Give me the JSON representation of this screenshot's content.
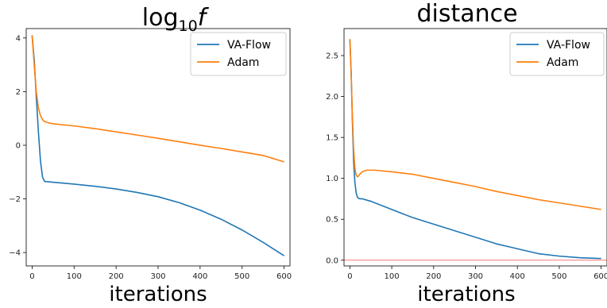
{
  "chart_data": [
    {
      "type": "line",
      "title": "log",
      "title_sub": "10",
      "title_suffix": "f",
      "xlabel": "iterations",
      "ylabel": "",
      "xlim": [
        -14,
        614
      ],
      "ylim": [
        -4.5,
        4.35
      ],
      "xticks": [
        0,
        100,
        200,
        300,
        400,
        500,
        600
      ],
      "yticks": [
        -4,
        -2,
        0,
        2,
        4
      ],
      "ytick_labels": [
        "−4",
        "−2",
        "0",
        "2",
        "4"
      ],
      "grid": false,
      "legend": "top-right",
      "series": [
        {
          "name": "VA-Flow",
          "color": "#1f77b4",
          "x": [
            0,
            5,
            10,
            15,
            20,
            25,
            30,
            50,
            100,
            150,
            200,
            250,
            300,
            350,
            400,
            450,
            500,
            550,
            600
          ],
          "y": [
            4.1,
            3.2,
            1.8,
            0.5,
            -0.6,
            -1.2,
            -1.35,
            -1.38,
            -1.45,
            -1.53,
            -1.63,
            -1.76,
            -1.92,
            -2.14,
            -2.42,
            -2.76,
            -3.16,
            -3.62,
            -4.12
          ]
        },
        {
          "name": "Adam",
          "color": "#ff7f0e",
          "x": [
            0,
            5,
            10,
            15,
            20,
            25,
            30,
            40,
            50,
            100,
            150,
            200,
            250,
            300,
            350,
            400,
            450,
            500,
            550,
            600
          ],
          "y": [
            4.1,
            3.0,
            2.0,
            1.4,
            1.1,
            0.95,
            0.88,
            0.83,
            0.8,
            0.72,
            0.62,
            0.5,
            0.38,
            0.26,
            0.13,
            0.0,
            -0.12,
            -0.25,
            -0.38,
            -0.62
          ]
        }
      ]
    },
    {
      "type": "line",
      "title": "distance",
      "xlabel": "iterations",
      "ylabel": "",
      "xlim": [
        -14,
        614
      ],
      "ylim": [
        -0.07,
        2.83
      ],
      "xticks": [
        0,
        100,
        200,
        300,
        400,
        500,
        600
      ],
      "yticks": [
        0.0,
        0.5,
        1.0,
        1.5,
        2.0,
        2.5
      ],
      "ytick_labels": [
        "0.0",
        "0.5",
        "1.0",
        "1.5",
        "2.0",
        "2.5"
      ],
      "grid": false,
      "legend": "top-right",
      "hline": {
        "y": 0.0,
        "color": "#ff7777"
      },
      "series": [
        {
          "name": "VA-Flow",
          "color": "#1f77b4",
          "x": [
            0,
            3,
            6,
            9,
            12,
            15,
            18,
            21,
            25,
            30,
            50,
            100,
            150,
            200,
            250,
            300,
            350,
            400,
            450,
            500,
            550,
            600
          ],
          "y": [
            2.7,
            2.3,
            1.7,
            1.2,
            0.95,
            0.82,
            0.77,
            0.755,
            0.75,
            0.75,
            0.72,
            0.62,
            0.52,
            0.44,
            0.36,
            0.28,
            0.2,
            0.14,
            0.08,
            0.05,
            0.03,
            0.02
          ]
        },
        {
          "name": "Adam",
          "color": "#ff7f0e",
          "x": [
            0,
            3,
            6,
            9,
            12,
            15,
            18,
            21,
            25,
            30,
            40,
            50,
            60,
            100,
            150,
            200,
            250,
            300,
            350,
            400,
            450,
            500,
            550,
            600
          ],
          "y": [
            2.7,
            2.3,
            1.75,
            1.35,
            1.12,
            1.04,
            1.02,
            1.03,
            1.06,
            1.08,
            1.1,
            1.1,
            1.1,
            1.08,
            1.05,
            1.0,
            0.95,
            0.9,
            0.84,
            0.79,
            0.74,
            0.7,
            0.66,
            0.62
          ]
        }
      ]
    }
  ]
}
